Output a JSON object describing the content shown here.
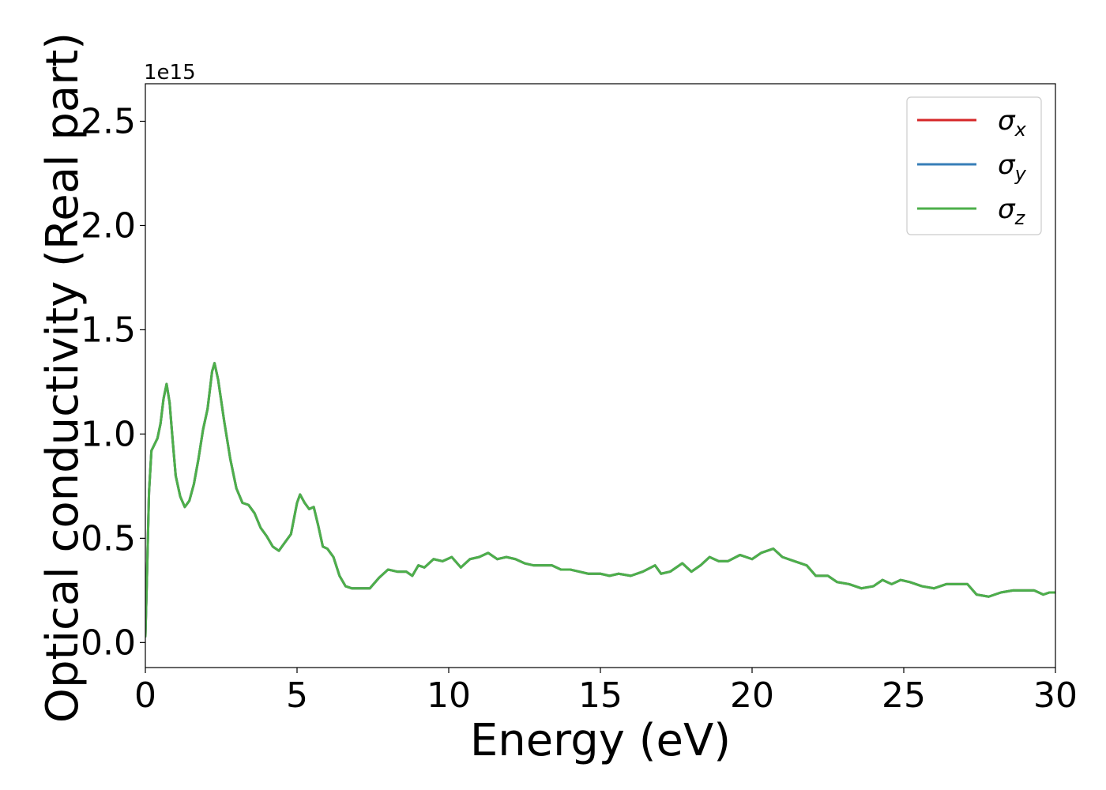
{
  "chart_data": {
    "type": "line",
    "title": "",
    "xlabel": "Energy (eV)",
    "ylabel": "Optical conductivity (Real part)",
    "y_offset_text": "1e15",
    "xlim": [
      0,
      30
    ],
    "ylim": [
      -0.12,
      2.68
    ],
    "x_ticks": [
      0,
      5,
      10,
      15,
      20,
      25,
      30
    ],
    "x_tick_labels": [
      "0",
      "5",
      "10",
      "15",
      "20",
      "25",
      "30"
    ],
    "y_ticks": [
      0.0,
      0.5,
      1.0,
      1.5,
      2.0,
      2.5
    ],
    "y_tick_labels": [
      "0.0",
      "0.5",
      "1.0",
      "1.5",
      "2.0",
      "2.5"
    ],
    "grid": false,
    "legend_position": "top-right",
    "legend": [
      {
        "symbol": "σ",
        "sub": "x",
        "color": "#d62728"
      },
      {
        "symbol": "σ",
        "sub": "y",
        "color": "#377eb8"
      },
      {
        "symbol": "σ",
        "sub": "z",
        "color": "#4daf4a"
      }
    ],
    "series_points": [
      [
        0.0,
        0.03
      ],
      [
        0.05,
        0.3
      ],
      [
        0.12,
        0.72
      ],
      [
        0.2,
        0.92
      ],
      [
        0.3,
        0.95
      ],
      [
        0.4,
        0.98
      ],
      [
        0.5,
        1.05
      ],
      [
        0.6,
        1.17
      ],
      [
        0.7,
        1.24
      ],
      [
        0.8,
        1.15
      ],
      [
        0.9,
        0.97
      ],
      [
        1.0,
        0.8
      ],
      [
        1.15,
        0.7
      ],
      [
        1.3,
        0.65
      ],
      [
        1.45,
        0.68
      ],
      [
        1.6,
        0.76
      ],
      [
        1.75,
        0.88
      ],
      [
        1.9,
        1.02
      ],
      [
        2.05,
        1.12
      ],
      [
        2.2,
        1.3
      ],
      [
        2.28,
        1.34
      ],
      [
        2.4,
        1.26
      ],
      [
        2.6,
        1.06
      ],
      [
        2.8,
        0.88
      ],
      [
        3.0,
        0.74
      ],
      [
        3.2,
        0.67
      ],
      [
        3.4,
        0.66
      ],
      [
        3.6,
        0.62
      ],
      [
        3.8,
        0.55
      ],
      [
        4.0,
        0.51
      ],
      [
        4.2,
        0.46
      ],
      [
        4.4,
        0.44
      ],
      [
        4.6,
        0.48
      ],
      [
        4.8,
        0.52
      ],
      [
        5.0,
        0.67
      ],
      [
        5.1,
        0.71
      ],
      [
        5.25,
        0.67
      ],
      [
        5.4,
        0.64
      ],
      [
        5.55,
        0.65
      ],
      [
        5.7,
        0.56
      ],
      [
        5.85,
        0.46
      ],
      [
        6.0,
        0.45
      ],
      [
        6.2,
        0.41
      ],
      [
        6.4,
        0.32
      ],
      [
        6.6,
        0.27
      ],
      [
        6.8,
        0.26
      ],
      [
        7.0,
        0.26
      ],
      [
        7.2,
        0.26
      ],
      [
        7.4,
        0.26
      ],
      [
        7.7,
        0.31
      ],
      [
        8.0,
        0.35
      ],
      [
        8.3,
        0.34
      ],
      [
        8.6,
        0.34
      ],
      [
        8.8,
        0.32
      ],
      [
        9.0,
        0.37
      ],
      [
        9.2,
        0.36
      ],
      [
        9.5,
        0.4
      ],
      [
        9.8,
        0.39
      ],
      [
        10.1,
        0.41
      ],
      [
        10.4,
        0.36
      ],
      [
        10.7,
        0.4
      ],
      [
        11.0,
        0.41
      ],
      [
        11.3,
        0.43
      ],
      [
        11.6,
        0.4
      ],
      [
        11.9,
        0.41
      ],
      [
        12.2,
        0.4
      ],
      [
        12.5,
        0.38
      ],
      [
        12.8,
        0.37
      ],
      [
        13.1,
        0.37
      ],
      [
        13.4,
        0.37
      ],
      [
        13.7,
        0.35
      ],
      [
        14.0,
        0.35
      ],
      [
        14.3,
        0.34
      ],
      [
        14.6,
        0.33
      ],
      [
        15.0,
        0.33
      ],
      [
        15.3,
        0.32
      ],
      [
        15.6,
        0.33
      ],
      [
        16.0,
        0.32
      ],
      [
        16.4,
        0.34
      ],
      [
        16.8,
        0.37
      ],
      [
        17.0,
        0.33
      ],
      [
        17.3,
        0.34
      ],
      [
        17.7,
        0.38
      ],
      [
        18.0,
        0.34
      ],
      [
        18.3,
        0.37
      ],
      [
        18.6,
        0.41
      ],
      [
        18.9,
        0.39
      ],
      [
        19.2,
        0.39
      ],
      [
        19.6,
        0.42
      ],
      [
        20.0,
        0.4
      ],
      [
        20.3,
        0.43
      ],
      [
        20.7,
        0.45
      ],
      [
        21.0,
        0.41
      ],
      [
        21.4,
        0.39
      ],
      [
        21.8,
        0.37
      ],
      [
        22.1,
        0.32
      ],
      [
        22.5,
        0.32
      ],
      [
        22.8,
        0.29
      ],
      [
        23.2,
        0.28
      ],
      [
        23.6,
        0.26
      ],
      [
        24.0,
        0.27
      ],
      [
        24.3,
        0.3
      ],
      [
        24.6,
        0.28
      ],
      [
        24.9,
        0.3
      ],
      [
        25.2,
        0.29
      ],
      [
        25.6,
        0.27
      ],
      [
        26.0,
        0.26
      ],
      [
        26.4,
        0.28
      ],
      [
        26.8,
        0.28
      ],
      [
        27.1,
        0.28
      ],
      [
        27.4,
        0.23
      ],
      [
        27.8,
        0.22
      ],
      [
        28.2,
        0.24
      ],
      [
        28.6,
        0.25
      ],
      [
        29.0,
        0.25
      ],
      [
        29.3,
        0.25
      ],
      [
        29.6,
        0.23
      ],
      [
        29.8,
        0.24
      ],
      [
        30.0,
        0.24
      ]
    ],
    "series": [
      {
        "sub": "x",
        "color": "#d62728"
      },
      {
        "sub": "y",
        "color": "#377eb8"
      },
      {
        "sub": "z",
        "color": "#4daf4a"
      }
    ]
  }
}
